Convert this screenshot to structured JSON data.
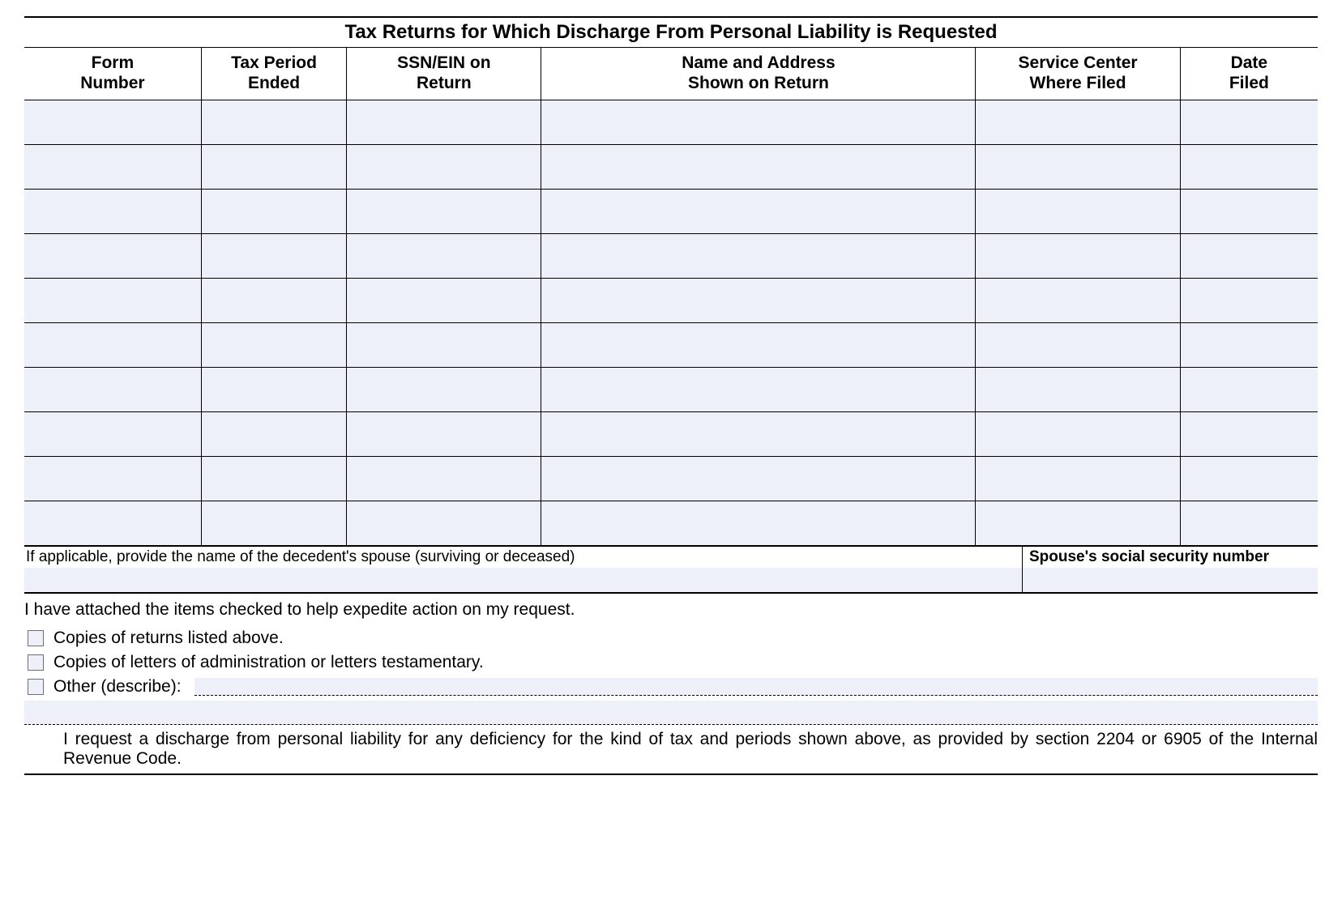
{
  "title": "Tax Returns for Which Discharge From Personal Liability is Requested",
  "columns": {
    "form_number_l1": "Form",
    "form_number_l2": "Number",
    "tax_period_l1": "Tax Period",
    "tax_period_l2": "Ended",
    "ssn_ein_l1": "SSN/EIN on",
    "ssn_ein_l2": "Return",
    "name_addr_l1": "Name and Address",
    "name_addr_l2": "Shown on Return",
    "service_center_l1": "Service Center",
    "service_center_l2": "Where Filed",
    "date_filed_l1": "Date",
    "date_filed_l2": "Filed"
  },
  "rows": [
    {
      "form_number": "",
      "tax_period": "",
      "ssn_ein": "",
      "name_addr": "",
      "service_center": "",
      "date_filed": ""
    },
    {
      "form_number": "",
      "tax_period": "",
      "ssn_ein": "",
      "name_addr": "",
      "service_center": "",
      "date_filed": ""
    },
    {
      "form_number": "",
      "tax_period": "",
      "ssn_ein": "",
      "name_addr": "",
      "service_center": "",
      "date_filed": ""
    },
    {
      "form_number": "",
      "tax_period": "",
      "ssn_ein": "",
      "name_addr": "",
      "service_center": "",
      "date_filed": ""
    },
    {
      "form_number": "",
      "tax_period": "",
      "ssn_ein": "",
      "name_addr": "",
      "service_center": "",
      "date_filed": ""
    },
    {
      "form_number": "",
      "tax_period": "",
      "ssn_ein": "",
      "name_addr": "",
      "service_center": "",
      "date_filed": ""
    },
    {
      "form_number": "",
      "tax_period": "",
      "ssn_ein": "",
      "name_addr": "",
      "service_center": "",
      "date_filed": ""
    },
    {
      "form_number": "",
      "tax_period": "",
      "ssn_ein": "",
      "name_addr": "",
      "service_center": "",
      "date_filed": ""
    },
    {
      "form_number": "",
      "tax_period": "",
      "ssn_ein": "",
      "name_addr": "",
      "service_center": "",
      "date_filed": ""
    },
    {
      "form_number": "",
      "tax_period": "",
      "ssn_ein": "",
      "name_addr": "",
      "service_center": "",
      "date_filed": ""
    }
  ],
  "spouse": {
    "name_label": "If applicable, provide the name of the decedent's spouse (surviving or deceased)",
    "ssn_label": "Spouse's social security number",
    "name_value": "",
    "ssn_value": ""
  },
  "attach": {
    "intro": "I have attached the items checked to help expedite action on my request.",
    "copies_returns": "Copies of returns listed above.",
    "copies_letters": "Copies of letters of administration or letters testamentary.",
    "other": "Other (describe):",
    "other_value": ""
  },
  "request_text": "I request a discharge from personal liability for any deficiency for the kind of tax and periods shown above, as provided by section 2204 or 6905 of the Internal Revenue Code.",
  "style": {
    "row_bg": "#eef0f9",
    "border_color": "#000000",
    "checkbox_border": "#6b6f78"
  }
}
